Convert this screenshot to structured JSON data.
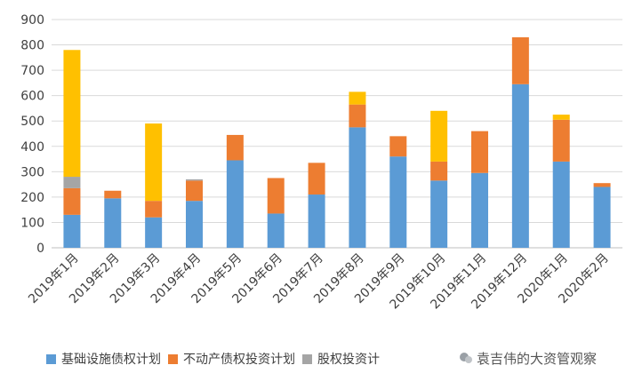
{
  "chart_data": {
    "type": "bar",
    "stacked": true,
    "categories": [
      "2019年1月",
      "2019年2月",
      "2019年3月",
      "2019年4月",
      "2019年5月",
      "2019年6月",
      "2019年7月",
      "2019年8月",
      "2019年9月",
      "2019年10月",
      "2019年11月",
      "2019年12月",
      "2020年1月",
      "2020年2月"
    ],
    "series": [
      {
        "name": "基础设施债权计划",
        "color": "#5B9BD5",
        "values": [
          130,
          195,
          120,
          185,
          345,
          135,
          210,
          475,
          360,
          265,
          295,
          645,
          340,
          240
        ]
      },
      {
        "name": "不动产债权投资计划",
        "color": "#ED7D31",
        "values": [
          105,
          30,
          65,
          80,
          100,
          140,
          125,
          90,
          80,
          75,
          165,
          185,
          165,
          15
        ]
      },
      {
        "name": "股权投资计划",
        "color": "#A5A5A5",
        "values": [
          45,
          0,
          0,
          5,
          0,
          0,
          0,
          0,
          0,
          0,
          0,
          0,
          0,
          0
        ]
      },
      {
        "name": "",
        "color": "#FFC000",
        "values": [
          500,
          0,
          305,
          0,
          0,
          0,
          0,
          50,
          0,
          200,
          0,
          0,
          20,
          0
        ]
      }
    ],
    "yticks": [
      0,
      100,
      200,
      300,
      400,
      500,
      600,
      700,
      800,
      900
    ],
    "ylim": [
      0,
      900
    ],
    "grid": true,
    "legend_position": "bottom"
  },
  "legend": {
    "items": [
      {
        "label": "基础设施债权计划",
        "color": "#5B9BD5"
      },
      {
        "label": "不动产债权投资计划",
        "color": "#ED7D31"
      },
      {
        "label": "股权投资计",
        "color": "#A5A5A5"
      }
    ]
  },
  "watermark": {
    "text": "袁吉伟的大资管观察"
  }
}
